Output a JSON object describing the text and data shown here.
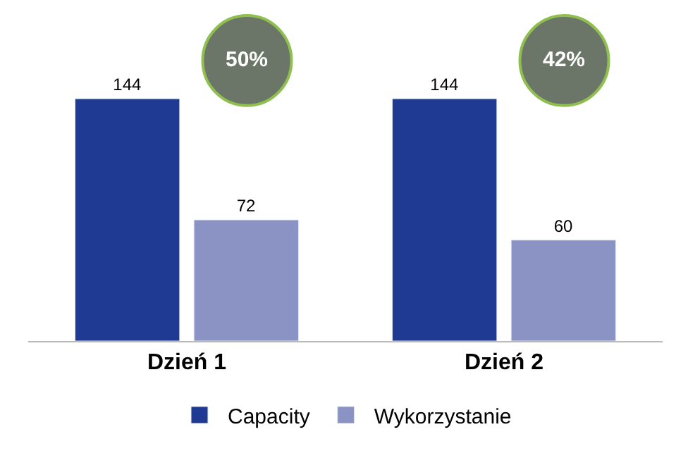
{
  "chart_data": {
    "type": "bar",
    "categories": [
      "Dzień 1",
      "Dzień 2"
    ],
    "series": [
      {
        "name": "Capacity",
        "color": "#1f3a93",
        "values": [
          144,
          144
        ]
      },
      {
        "name": "Wykorzystanie",
        "color": "#8a93c4",
        "values": [
          72,
          60
        ]
      }
    ],
    "annotations": [
      "50%",
      "42%"
    ],
    "data_labels": true,
    "legend": "bottom"
  }
}
